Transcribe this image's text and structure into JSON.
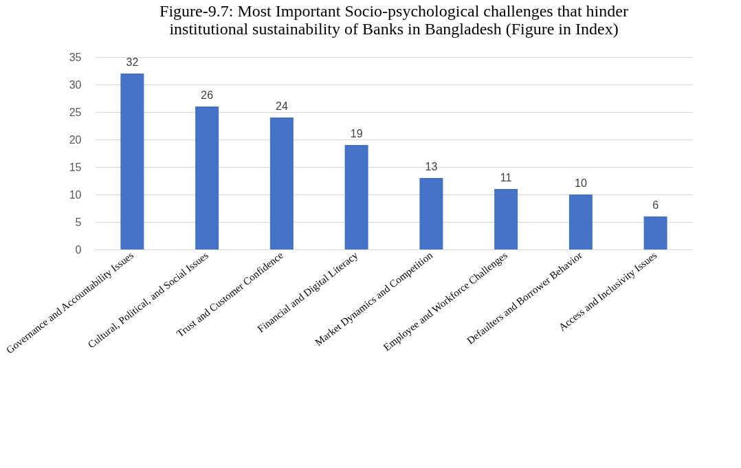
{
  "chart_data": {
    "type": "bar",
    "title": [
      "Figure-9.7: Most Important Socio-psychological challenges that hinder",
      "institutional sustainability of Banks in Bangladesh (Figure in Index)"
    ],
    "categories": [
      "Governance and Accountability Issues",
      "Cultural, Political, and Social Issues",
      "Trust and Customer Confidence",
      "Financial and Digital Literacy",
      "Market Dynamics and Competition",
      "Employee and Workforce Challenges",
      "Defaulters and Borrower Behavior",
      "Access and Inclusivity Issues"
    ],
    "values": [
      32,
      26,
      24,
      19,
      13,
      11,
      10,
      6
    ],
    "color": "#4472c4",
    "ylim": [
      0,
      35
    ],
    "yticks": [
      0,
      5,
      10,
      15,
      20,
      25,
      30,
      35
    ],
    "grid": "y",
    "data_labels": true
  }
}
